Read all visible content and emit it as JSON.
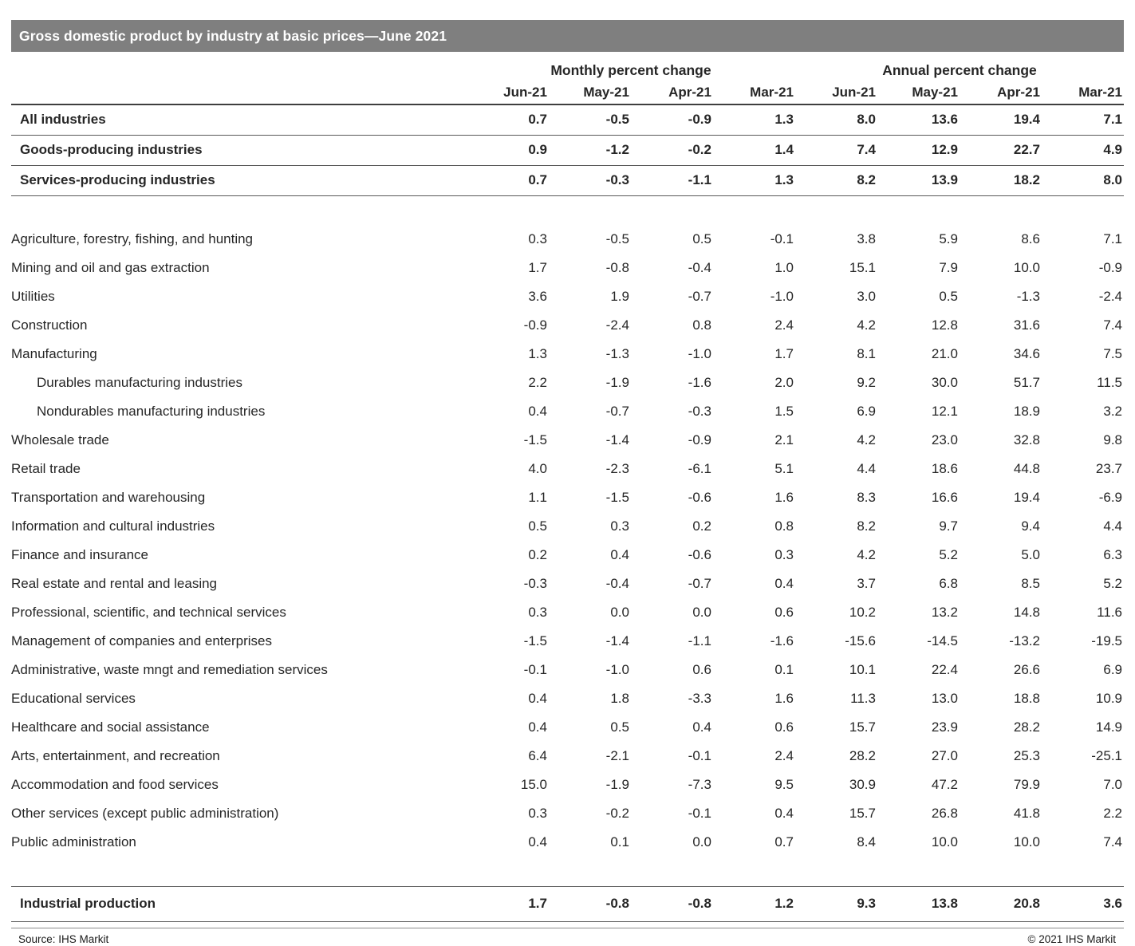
{
  "chart_data": {
    "type": "table",
    "title": "Gross domestic product by industry at basic prices—June 2021",
    "group_headers": [
      "Monthly percent change",
      "Annual percent change"
    ],
    "columns": [
      "Jun-21",
      "May-21",
      "Apr-21",
      "Mar-21",
      "Jun-21",
      "May-21",
      "Apr-21",
      "Mar-21"
    ],
    "rows": [
      {
        "type": "summary",
        "label": "All industries",
        "values": [
          "0.7",
          "-0.5",
          "-0.9",
          "1.3",
          "8.0",
          "13.6",
          "19.4",
          "7.1"
        ]
      },
      {
        "type": "summary",
        "label": "Goods-producing industries",
        "values": [
          "0.9",
          "-1.2",
          "-0.2",
          "1.4",
          "7.4",
          "12.9",
          "22.7",
          "4.9"
        ]
      },
      {
        "type": "summary",
        "label": "Services-producing industries",
        "values": [
          "0.7",
          "-0.3",
          "-1.1",
          "1.3",
          "8.2",
          "13.9",
          "18.2",
          "8.0"
        ]
      },
      {
        "type": "spacer"
      },
      {
        "type": "data",
        "label": "Agriculture, forestry, fishing, and hunting",
        "values": [
          "0.3",
          "-0.5",
          "0.5",
          "-0.1",
          "3.8",
          "5.9",
          "8.6",
          "7.1"
        ]
      },
      {
        "type": "data",
        "label": "Mining and oil and gas extraction",
        "values": [
          "1.7",
          "-0.8",
          "-0.4",
          "1.0",
          "15.1",
          "7.9",
          "10.0",
          "-0.9"
        ]
      },
      {
        "type": "data",
        "label": "Utilities",
        "values": [
          "3.6",
          "1.9",
          "-0.7",
          "-1.0",
          "3.0",
          "0.5",
          "-1.3",
          "-2.4"
        ]
      },
      {
        "type": "data",
        "label": "Construction",
        "values": [
          "-0.9",
          "-2.4",
          "0.8",
          "2.4",
          "4.2",
          "12.8",
          "31.6",
          "7.4"
        ]
      },
      {
        "type": "data",
        "label": "Manufacturing",
        "values": [
          "1.3",
          "-1.3",
          "-1.0",
          "1.7",
          "8.1",
          "21.0",
          "34.6",
          "7.5"
        ]
      },
      {
        "type": "data",
        "indent": true,
        "label": "Durables manufacturing industries",
        "values": [
          "2.2",
          "-1.9",
          "-1.6",
          "2.0",
          "9.2",
          "30.0",
          "51.7",
          "11.5"
        ]
      },
      {
        "type": "data",
        "indent": true,
        "label": "Nondurables manufacturing industries",
        "values": [
          "0.4",
          "-0.7",
          "-0.3",
          "1.5",
          "6.9",
          "12.1",
          "18.9",
          "3.2"
        ]
      },
      {
        "type": "data",
        "label": "Wholesale trade",
        "values": [
          "-1.5",
          "-1.4",
          "-0.9",
          "2.1",
          "4.2",
          "23.0",
          "32.8",
          "9.8"
        ]
      },
      {
        "type": "data",
        "label": "Retail trade",
        "values": [
          "4.0",
          "-2.3",
          "-6.1",
          "5.1",
          "4.4",
          "18.6",
          "44.8",
          "23.7"
        ]
      },
      {
        "type": "data",
        "label": "Transportation and warehousing",
        "values": [
          "1.1",
          "-1.5",
          "-0.6",
          "1.6",
          "8.3",
          "16.6",
          "19.4",
          "-6.9"
        ]
      },
      {
        "type": "data",
        "label": "Information and cultural industries",
        "values": [
          "0.5",
          "0.3",
          "0.2",
          "0.8",
          "8.2",
          "9.7",
          "9.4",
          "4.4"
        ]
      },
      {
        "type": "data",
        "label": "Finance and insurance",
        "values": [
          "0.2",
          "0.4",
          "-0.6",
          "0.3",
          "4.2",
          "5.2",
          "5.0",
          "6.3"
        ]
      },
      {
        "type": "data",
        "label": "Real estate and rental and leasing",
        "values": [
          "-0.3",
          "-0.4",
          "-0.7",
          "0.4",
          "3.7",
          "6.8",
          "8.5",
          "5.2"
        ]
      },
      {
        "type": "data",
        "label": "Professional, scientific, and technical services",
        "values": [
          "0.3",
          "0.0",
          "0.0",
          "0.6",
          "10.2",
          "13.2",
          "14.8",
          "11.6"
        ]
      },
      {
        "type": "data",
        "label": "Management of companies and enterprises",
        "values": [
          "-1.5",
          "-1.4",
          "-1.1",
          "-1.6",
          "-15.6",
          "-14.5",
          "-13.2",
          "-19.5"
        ]
      },
      {
        "type": "data",
        "label": "Administrative, waste mngt and remediation services",
        "values": [
          "-0.1",
          "-1.0",
          "0.6",
          "0.1",
          "10.1",
          "22.4",
          "26.6",
          "6.9"
        ]
      },
      {
        "type": "data",
        "label": "Educational services",
        "values": [
          "0.4",
          "1.8",
          "-3.3",
          "1.6",
          "11.3",
          "13.0",
          "18.8",
          "10.9"
        ]
      },
      {
        "type": "data",
        "label": "Healthcare and social assistance",
        "values": [
          "0.4",
          "0.5",
          "0.4",
          "0.6",
          "15.7",
          "23.9",
          "28.2",
          "14.9"
        ]
      },
      {
        "type": "data",
        "label": "Arts, entertainment, and recreation",
        "values": [
          "6.4",
          "-2.1",
          "-0.1",
          "2.4",
          "28.2",
          "27.0",
          "25.3",
          "-25.1"
        ]
      },
      {
        "type": "data",
        "label": "Accommodation and food services",
        "values": [
          "15.0",
          "-1.9",
          "-7.3",
          "9.5",
          "30.9",
          "47.2",
          "79.9",
          "7.0"
        ]
      },
      {
        "type": "data",
        "label": "Other services (except public administration)",
        "values": [
          "0.3",
          "-0.2",
          "-0.1",
          "0.4",
          "15.7",
          "26.8",
          "41.8",
          "2.2"
        ]
      },
      {
        "type": "data",
        "label": "Public administration",
        "values": [
          "0.4",
          "0.1",
          "0.0",
          "0.7",
          "8.4",
          "10.0",
          "10.0",
          "7.4"
        ]
      },
      {
        "type": "spacer"
      },
      {
        "type": "total",
        "label": "Industrial production",
        "values": [
          "1.7",
          "-0.8",
          "-0.8",
          "1.2",
          "9.3",
          "13.8",
          "20.8",
          "3.6"
        ]
      }
    ]
  },
  "footer": {
    "source": "Source: IHS Markit",
    "copyright": "© 2021 IHS Markit"
  },
  "colors": {
    "title_bar_bg": "#7f7f7f",
    "title_text": "#ffffff",
    "body_text": "#262626",
    "rule_dark": "#3f3f3f",
    "rule_medium": "#595959",
    "rule_light": "#8c8c8c"
  }
}
